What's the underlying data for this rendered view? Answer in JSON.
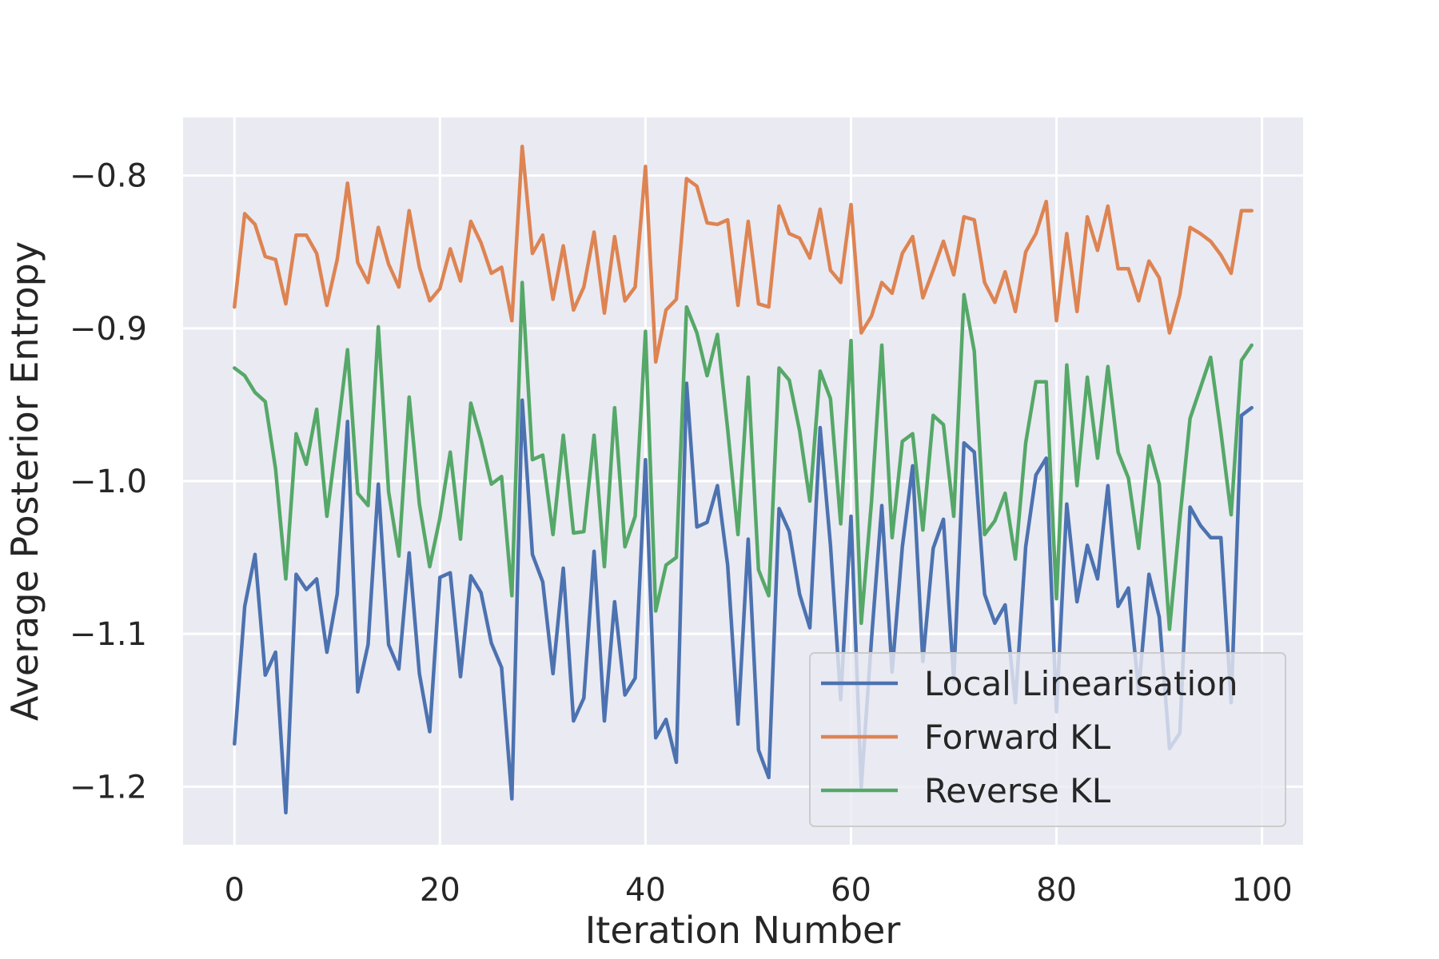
{
  "chart_data": {
    "type": "line",
    "title": "",
    "xlabel": "Iteration Number",
    "ylabel": "Average Posterior Entropy",
    "xlim": [
      -5,
      104
    ],
    "ylim": [
      -1.238,
      -0.762
    ],
    "xticks": [
      0,
      20,
      40,
      60,
      80,
      100
    ],
    "xtick_labels": [
      "0",
      "20",
      "40",
      "60",
      "80",
      "100"
    ],
    "yticks": [
      -0.8,
      -0.9,
      -1.0,
      -1.1,
      -1.2
    ],
    "ytick_labels": [
      "−0.8",
      "−0.9",
      "−1.0",
      "−1.1",
      "−1.2"
    ],
    "grid": true,
    "legend_position": "lower-right",
    "series": [
      {
        "name": "Local Linearisation",
        "color": "#4c72b0",
        "values": [
          -1.172,
          -1.082,
          -1.048,
          -1.127,
          -1.112,
          -1.217,
          -1.061,
          -1.071,
          -1.064,
          -1.112,
          -1.074,
          -0.961,
          -1.138,
          -1.107,
          -1.002,
          -1.107,
          -1.123,
          -1.047,
          -1.126,
          -1.164,
          -1.063,
          -1.06,
          -1.128,
          -1.062,
          -1.073,
          -1.106,
          -1.122,
          -1.208,
          -0.947,
          -1.048,
          -1.066,
          -1.126,
          -1.057,
          -1.157,
          -1.142,
          -1.046,
          -1.157,
          -1.079,
          -1.14,
          -1.129,
          -0.986,
          -1.168,
          -1.156,
          -1.184,
          -0.936,
          -1.03,
          -1.027,
          -1.003,
          -1.055,
          -1.159,
          -1.038,
          -1.176,
          -1.194,
          -1.018,
          -1.033,
          -1.074,
          -1.096,
          -0.965,
          -1.042,
          -1.143,
          -1.023,
          -1.2,
          -1.103,
          -1.016,
          -1.125,
          -1.043,
          -0.99,
          -1.118,
          -1.044,
          -1.025,
          -1.13,
          -0.975,
          -0.981,
          -1.074,
          -1.093,
          -1.081,
          -1.145,
          -1.043,
          -0.996,
          -0.985,
          -1.151,
          -1.015,
          -1.079,
          -1.042,
          -1.064,
          -1.003,
          -1.082,
          -1.07,
          -1.137,
          -1.061,
          -1.089,
          -1.175,
          -1.165,
          -1.017,
          -1.029,
          -1.037,
          -1.037,
          -1.145,
          -0.957,
          -0.952
        ]
      },
      {
        "name": "Forward KL",
        "color": "#dd8452",
        "values": [
          -0.886,
          -0.825,
          -0.832,
          -0.853,
          -0.855,
          -0.884,
          -0.839,
          -0.839,
          -0.851,
          -0.885,
          -0.855,
          -0.805,
          -0.857,
          -0.87,
          -0.834,
          -0.858,
          -0.873,
          -0.823,
          -0.86,
          -0.882,
          -0.874,
          -0.848,
          -0.869,
          -0.83,
          -0.844,
          -0.864,
          -0.86,
          -0.895,
          -0.781,
          -0.851,
          -0.839,
          -0.881,
          -0.846,
          -0.888,
          -0.873,
          -0.837,
          -0.89,
          -0.84,
          -0.882,
          -0.873,
          -0.794,
          -0.922,
          -0.888,
          -0.881,
          -0.802,
          -0.807,
          -0.831,
          -0.832,
          -0.829,
          -0.885,
          -0.83,
          -0.884,
          -0.886,
          -0.82,
          -0.838,
          -0.841,
          -0.854,
          -0.822,
          -0.862,
          -0.87,
          -0.819,
          -0.903,
          -0.892,
          -0.87,
          -0.877,
          -0.851,
          -0.84,
          -0.88,
          -0.862,
          -0.843,
          -0.865,
          -0.827,
          -0.829,
          -0.87,
          -0.883,
          -0.863,
          -0.889,
          -0.85,
          -0.838,
          -0.817,
          -0.895,
          -0.838,
          -0.889,
          -0.827,
          -0.849,
          -0.82,
          -0.861,
          -0.861,
          -0.882,
          -0.856,
          -0.867,
          -0.903,
          -0.878,
          -0.834,
          -0.838,
          -0.843,
          -0.852,
          -0.864,
          -0.823,
          -0.823
        ]
      },
      {
        "name": "Reverse KL",
        "color": "#55a868",
        "values": [
          -0.926,
          -0.931,
          -0.942,
          -0.948,
          -0.992,
          -1.064,
          -0.969,
          -0.989,
          -0.953,
          -1.023,
          -0.97,
          -0.914,
          -1.008,
          -1.016,
          -0.899,
          -1.007,
          -1.049,
          -0.945,
          -1.015,
          -1.056,
          -1.024,
          -0.981,
          -1.038,
          -0.949,
          -0.973,
          -1.002,
          -0.997,
          -1.075,
          -0.87,
          -0.986,
          -0.983,
          -1.035,
          -0.97,
          -1.034,
          -1.033,
          -0.97,
          -1.056,
          -0.952,
          -1.043,
          -1.023,
          -0.902,
          -1.085,
          -1.055,
          -1.05,
          -0.886,
          -0.903,
          -0.931,
          -0.904,
          -0.966,
          -1.035,
          -0.932,
          -1.058,
          -1.075,
          -0.926,
          -0.934,
          -0.967,
          -1.013,
          -0.928,
          -0.946,
          -1.028,
          -0.908,
          -1.093,
          -1.013,
          -0.911,
          -1.037,
          -0.974,
          -0.969,
          -1.032,
          -0.957,
          -0.963,
          -1.023,
          -0.878,
          -0.915,
          -1.035,
          -1.026,
          -1.008,
          -1.051,
          -0.975,
          -0.935,
          -0.935,
          -1.077,
          -0.924,
          -1.003,
          -0.932,
          -0.985,
          -0.925,
          -0.981,
          -0.998,
          -1.044,
          -0.977,
          -1.002,
          -1.097,
          -1.025,
          -0.959,
          -0.939,
          -0.919,
          -0.968,
          -1.022,
          -0.921,
          -0.911
        ]
      }
    ]
  }
}
